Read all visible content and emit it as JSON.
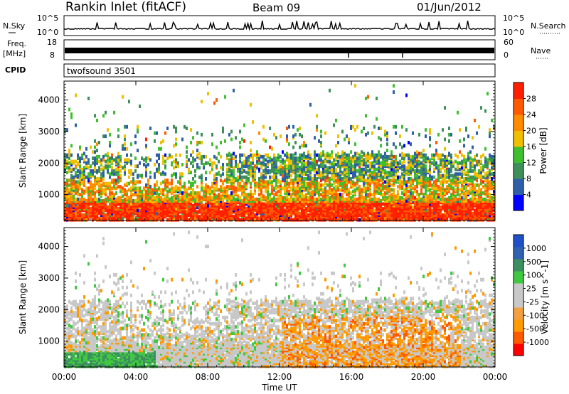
{
  "header": {
    "station": "Rankin Inlet (fitACF)",
    "beam": "Beam 09",
    "date": "01/Jun/2012"
  },
  "nsky_panel": {
    "left_label": "N.Sky",
    "right_label": "N.Search",
    "left_ticks": [
      "10^5",
      "10^0"
    ],
    "right_ticks": [
      "10^5",
      "10^0"
    ]
  },
  "freq_panel": {
    "left_label_1": "Freq.",
    "left_label_2": "[MHz]",
    "right_label": "Nave",
    "left_ticks": [
      "18",
      "8"
    ],
    "right_ticks": [
      "60",
      "0"
    ]
  },
  "cpid": {
    "label": "CPID",
    "value": "twofsound 3501"
  },
  "colors": {
    "power_scale": [
      "#0000ff",
      "#2e5fa8",
      "#3e8f5a",
      "#3fbf2f",
      "#f0c000",
      "#ff8c00",
      "#ff5a00",
      "#ff2000"
    ],
    "velocity_scale": [
      "#ff0000",
      "#ff5a00",
      "#ff9a00",
      "#f2a040",
      "#c8c8c8",
      "#c8c8c8",
      "#40c840",
      "#3c8f60",
      "#3060b0",
      "#2050c8"
    ]
  },
  "chart_data": [
    {
      "type": "heatmap",
      "title": "",
      "xlabel": "",
      "ylabel": "Slant Range [km]",
      "x_ticks": [
        "00:00",
        "04:00",
        "08:00",
        "12:00",
        "16:00",
        "20:00",
        "00:00"
      ],
      "xlim_hours": [
        0,
        24
      ],
      "ylim": [
        180,
        4600
      ],
      "y_ticks": [
        1000,
        2000,
        3000,
        4000
      ],
      "colorbar": {
        "label": "Power [dB]",
        "ticks": [
          "4",
          "8",
          "12",
          "16",
          "20",
          "24",
          "28"
        ],
        "range": [
          0,
          30
        ]
      }
    },
    {
      "type": "heatmap",
      "title": "",
      "xlabel": "Time UT",
      "ylabel": "Slant Range [km]",
      "x_ticks": [
        "00:00",
        "04:00",
        "08:00",
        "12:00",
        "16:00",
        "20:00",
        "00:00"
      ],
      "xlim_hours": [
        0,
        24
      ],
      "ylim": [
        180,
        4600
      ],
      "y_ticks": [
        1000,
        2000,
        3000,
        4000
      ],
      "colorbar": {
        "label": "Velocity [m s^-1]",
        "ticks": [
          "1000",
          "500",
          "100",
          "25",
          "-25",
          "-100",
          "-500",
          "-1000"
        ]
      }
    }
  ]
}
